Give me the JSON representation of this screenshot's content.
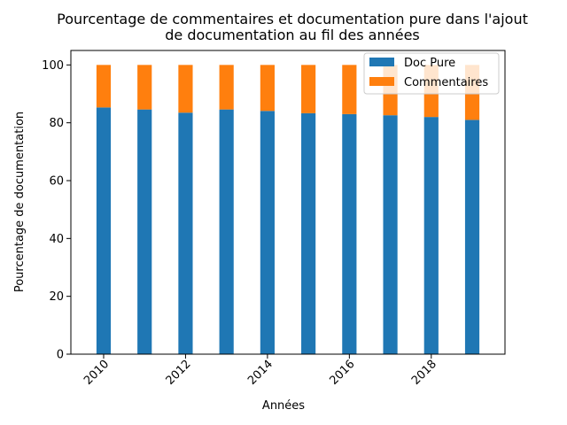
{
  "chart_data": {
    "type": "bar",
    "stacked": true,
    "title_lines": [
      "Pourcentage de commentaires et documentation pure dans l'ajout",
      "de documentation au fil des années"
    ],
    "xlabel": "Années",
    "ylabel": "Pourcentage de documentation",
    "x": [
      2010,
      2011,
      2012,
      2013,
      2014,
      2015,
      2016,
      2017,
      2018,
      2019
    ],
    "xlim": [
      2009.2,
      2019.8
    ],
    "xticks": [
      "2010",
      "2012",
      "2014",
      "2016",
      "2018"
    ],
    "ylim": [
      0,
      105
    ],
    "yticks": [
      "0",
      "20",
      "40",
      "60",
      "80",
      "100"
    ],
    "grid": false,
    "legend_position": "top-right",
    "series": [
      {
        "name": "Doc Pure",
        "color": "#1f77b4",
        "values": [
          85.3,
          84.6,
          83.5,
          84.6,
          84.1,
          83.3,
          83.0,
          82.6,
          82.0,
          81.0
        ]
      },
      {
        "name": "Commentaires",
        "color": "#ff7f0e",
        "values": [
          14.7,
          15.4,
          16.5,
          15.4,
          15.9,
          16.7,
          17.0,
          17.4,
          18.0,
          19.0
        ]
      }
    ]
  }
}
